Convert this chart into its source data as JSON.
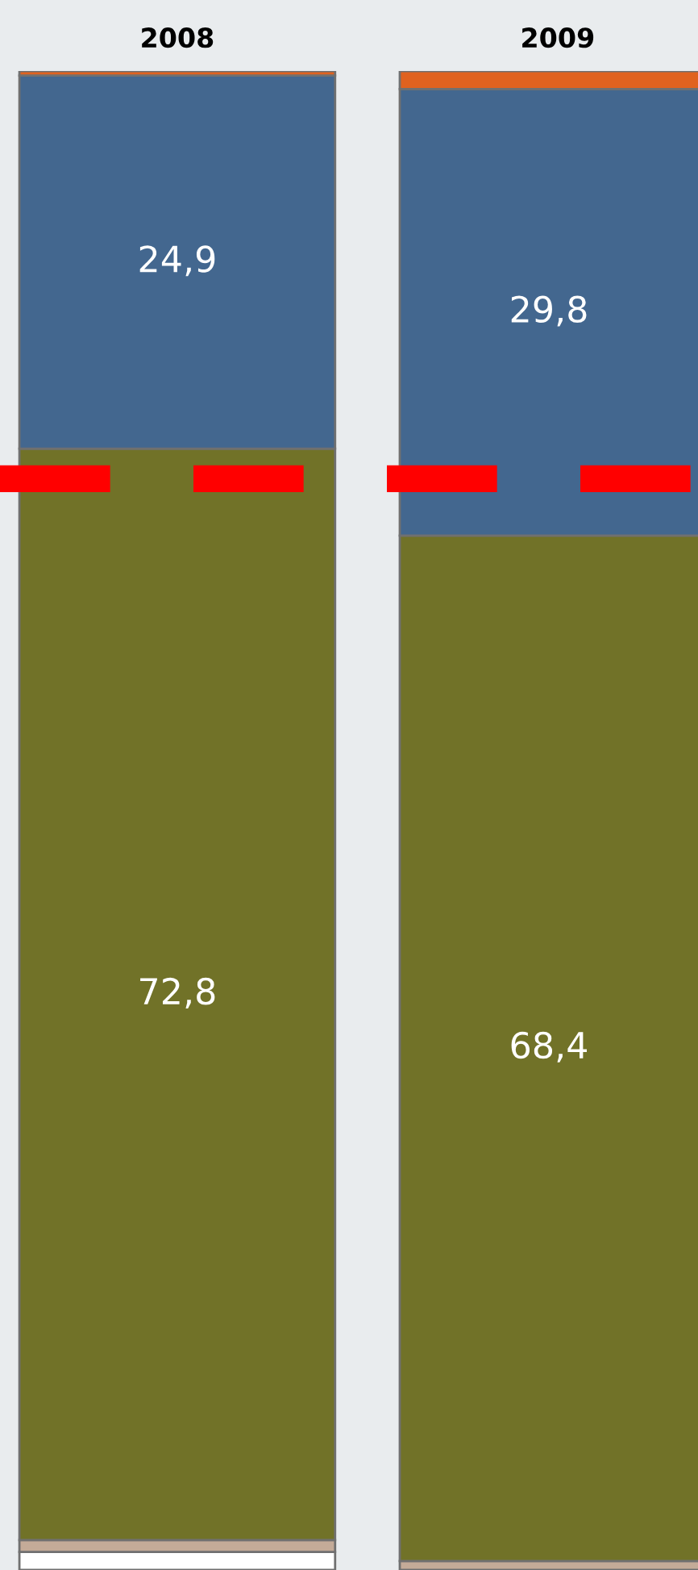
{
  "chart_data": {
    "type": "bar",
    "stacked": true,
    "categories": [
      "2008",
      "2009"
    ],
    "ylim": [
      0,
      100
    ],
    "tick_labels": "x",
    "grid": false,
    "legend": false,
    "series": [
      {
        "color": "#ffffff",
        "values": [
          1.2,
          0
        ]
      },
      {
        "color": "#c4ab98",
        "values": [
          0.8,
          0.6
        ]
      },
      {
        "color": "#717228",
        "values": [
          72.8,
          68.4
        ],
        "value_labels": [
          "72,8",
          "68,4"
        ]
      },
      {
        "color": "#43678f",
        "values": [
          24.9,
          29.8
        ],
        "value_labels": [
          "24,9",
          "29,8"
        ]
      },
      {
        "color": "#e0621f",
        "values": [
          0.3,
          1.2
        ]
      }
    ],
    "ref_lines": [
      {
        "axis": "y",
        "value": 72.8,
        "color": "#ff0000",
        "line_style": "dashed"
      }
    ]
  }
}
